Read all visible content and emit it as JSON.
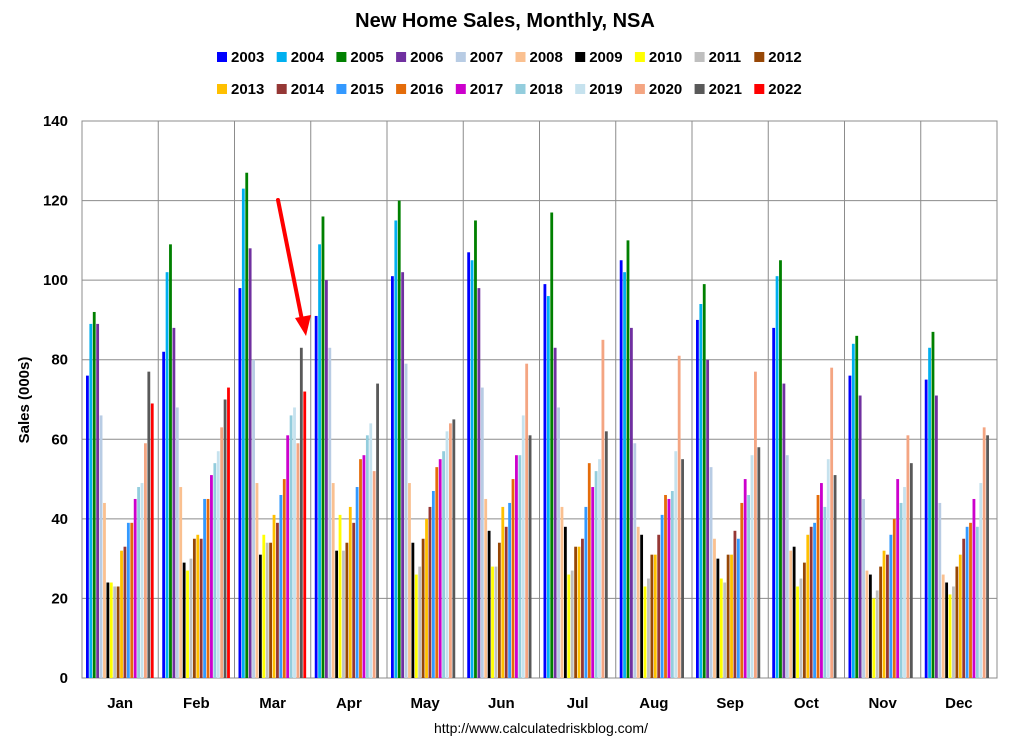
{
  "chart_data": {
    "type": "bar",
    "title": "New Home Sales, Monthly, NSA",
    "xlabel": "",
    "ylabel": "Sales (000s)",
    "ylim": [
      0,
      140
    ],
    "yticks": [
      "0",
      "20",
      "40",
      "60",
      "80",
      "100",
      "120",
      "140"
    ],
    "grid": true,
    "legend_position": "top",
    "source_text": "http://www.calculatedriskblog.com/",
    "annotation": "red arrow pointing to March 2021",
    "categories": [
      "Jan",
      "Feb",
      "Mar",
      "Apr",
      "May",
      "Jun",
      "Jul",
      "Aug",
      "Sep",
      "Oct",
      "Nov",
      "Dec"
    ],
    "series": [
      {
        "name": "2003",
        "color": "#0000ff",
        "values": [
          76,
          82,
          98,
          91,
          101,
          107,
          99,
          105,
          90,
          88,
          76,
          75
        ]
      },
      {
        "name": "2004",
        "color": "#00b0f0",
        "values": [
          89,
          102,
          123,
          109,
          115,
          105,
          96,
          102,
          94,
          101,
          84,
          83
        ]
      },
      {
        "name": "2005",
        "color": "#008000",
        "values": [
          92,
          109,
          127,
          116,
          120,
          115,
          117,
          110,
          99,
          105,
          86,
          87
        ]
      },
      {
        "name": "2006",
        "color": "#7030a0",
        "values": [
          89,
          88,
          108,
          100,
          102,
          98,
          83,
          88,
          80,
          74,
          71,
          71
        ]
      },
      {
        "name": "2007",
        "color": "#b8cce4",
        "values": [
          66,
          68,
          80,
          83,
          79,
          73,
          68,
          59,
          53,
          56,
          45,
          44
        ]
      },
      {
        "name": "2008",
        "color": "#fac090",
        "values": [
          44,
          48,
          49,
          49,
          49,
          45,
          43,
          38,
          35,
          32,
          27,
          26
        ]
      },
      {
        "name": "2009",
        "color": "#000000",
        "values": [
          24,
          29,
          31,
          32,
          34,
          37,
          38,
          36,
          30,
          33,
          26,
          24
        ]
      },
      {
        "name": "2010",
        "color": "#ffff00",
        "values": [
          24,
          27,
          36,
          41,
          26,
          28,
          26,
          23,
          25,
          23,
          20,
          21
        ]
      },
      {
        "name": "2011",
        "color": "#bfbfbf",
        "values": [
          23,
          30,
          34,
          32,
          28,
          28,
          27,
          25,
          24,
          25,
          22,
          23
        ]
      },
      {
        "name": "2012",
        "color": "#974706",
        "values": [
          23,
          35,
          34,
          34,
          35,
          34,
          33,
          31,
          31,
          29,
          28,
          28
        ]
      },
      {
        "name": "2013",
        "color": "#ffc000",
        "values": [
          32,
          36,
          41,
          43,
          40,
          43,
          33,
          31,
          31,
          36,
          32,
          31
        ]
      },
      {
        "name": "2014",
        "color": "#953735",
        "values": [
          33,
          35,
          39,
          39,
          43,
          38,
          35,
          36,
          37,
          38,
          31,
          35
        ]
      },
      {
        "name": "2015",
        "color": "#3399ff",
        "values": [
          39,
          45,
          46,
          48,
          47,
          44,
          43,
          41,
          35,
          39,
          36,
          38
        ]
      },
      {
        "name": "2016",
        "color": "#e46c0a",
        "values": [
          39,
          45,
          50,
          55,
          53,
          50,
          54,
          46,
          44,
          46,
          40,
          39
        ]
      },
      {
        "name": "2017",
        "color": "#cc00cc",
        "values": [
          45,
          51,
          61,
          56,
          55,
          56,
          48,
          45,
          50,
          49,
          50,
          45
        ]
      },
      {
        "name": "2018",
        "color": "#93cddd",
        "values": [
          48,
          54,
          66,
          61,
          57,
          56,
          52,
          47,
          46,
          43,
          44,
          38
        ]
      },
      {
        "name": "2019",
        "color": "#c6e2ee",
        "values": [
          49,
          57,
          68,
          64,
          62,
          66,
          55,
          57,
          56,
          55,
          48,
          49
        ]
      },
      {
        "name": "2020",
        "color": "#f4a582",
        "values": [
          59,
          63,
          59,
          52,
          64,
          79,
          85,
          81,
          77,
          78,
          61,
          63
        ]
      },
      {
        "name": "2021",
        "color": "#595959",
        "values": [
          77,
          70,
          83,
          74,
          65,
          61,
          62,
          55,
          58,
          51,
          54,
          61
        ]
      },
      {
        "name": "2022",
        "color": "#ff0000",
        "values": [
          69,
          73,
          72,
          null,
          null,
          null,
          null,
          null,
          null,
          null,
          null,
          null
        ]
      }
    ]
  }
}
